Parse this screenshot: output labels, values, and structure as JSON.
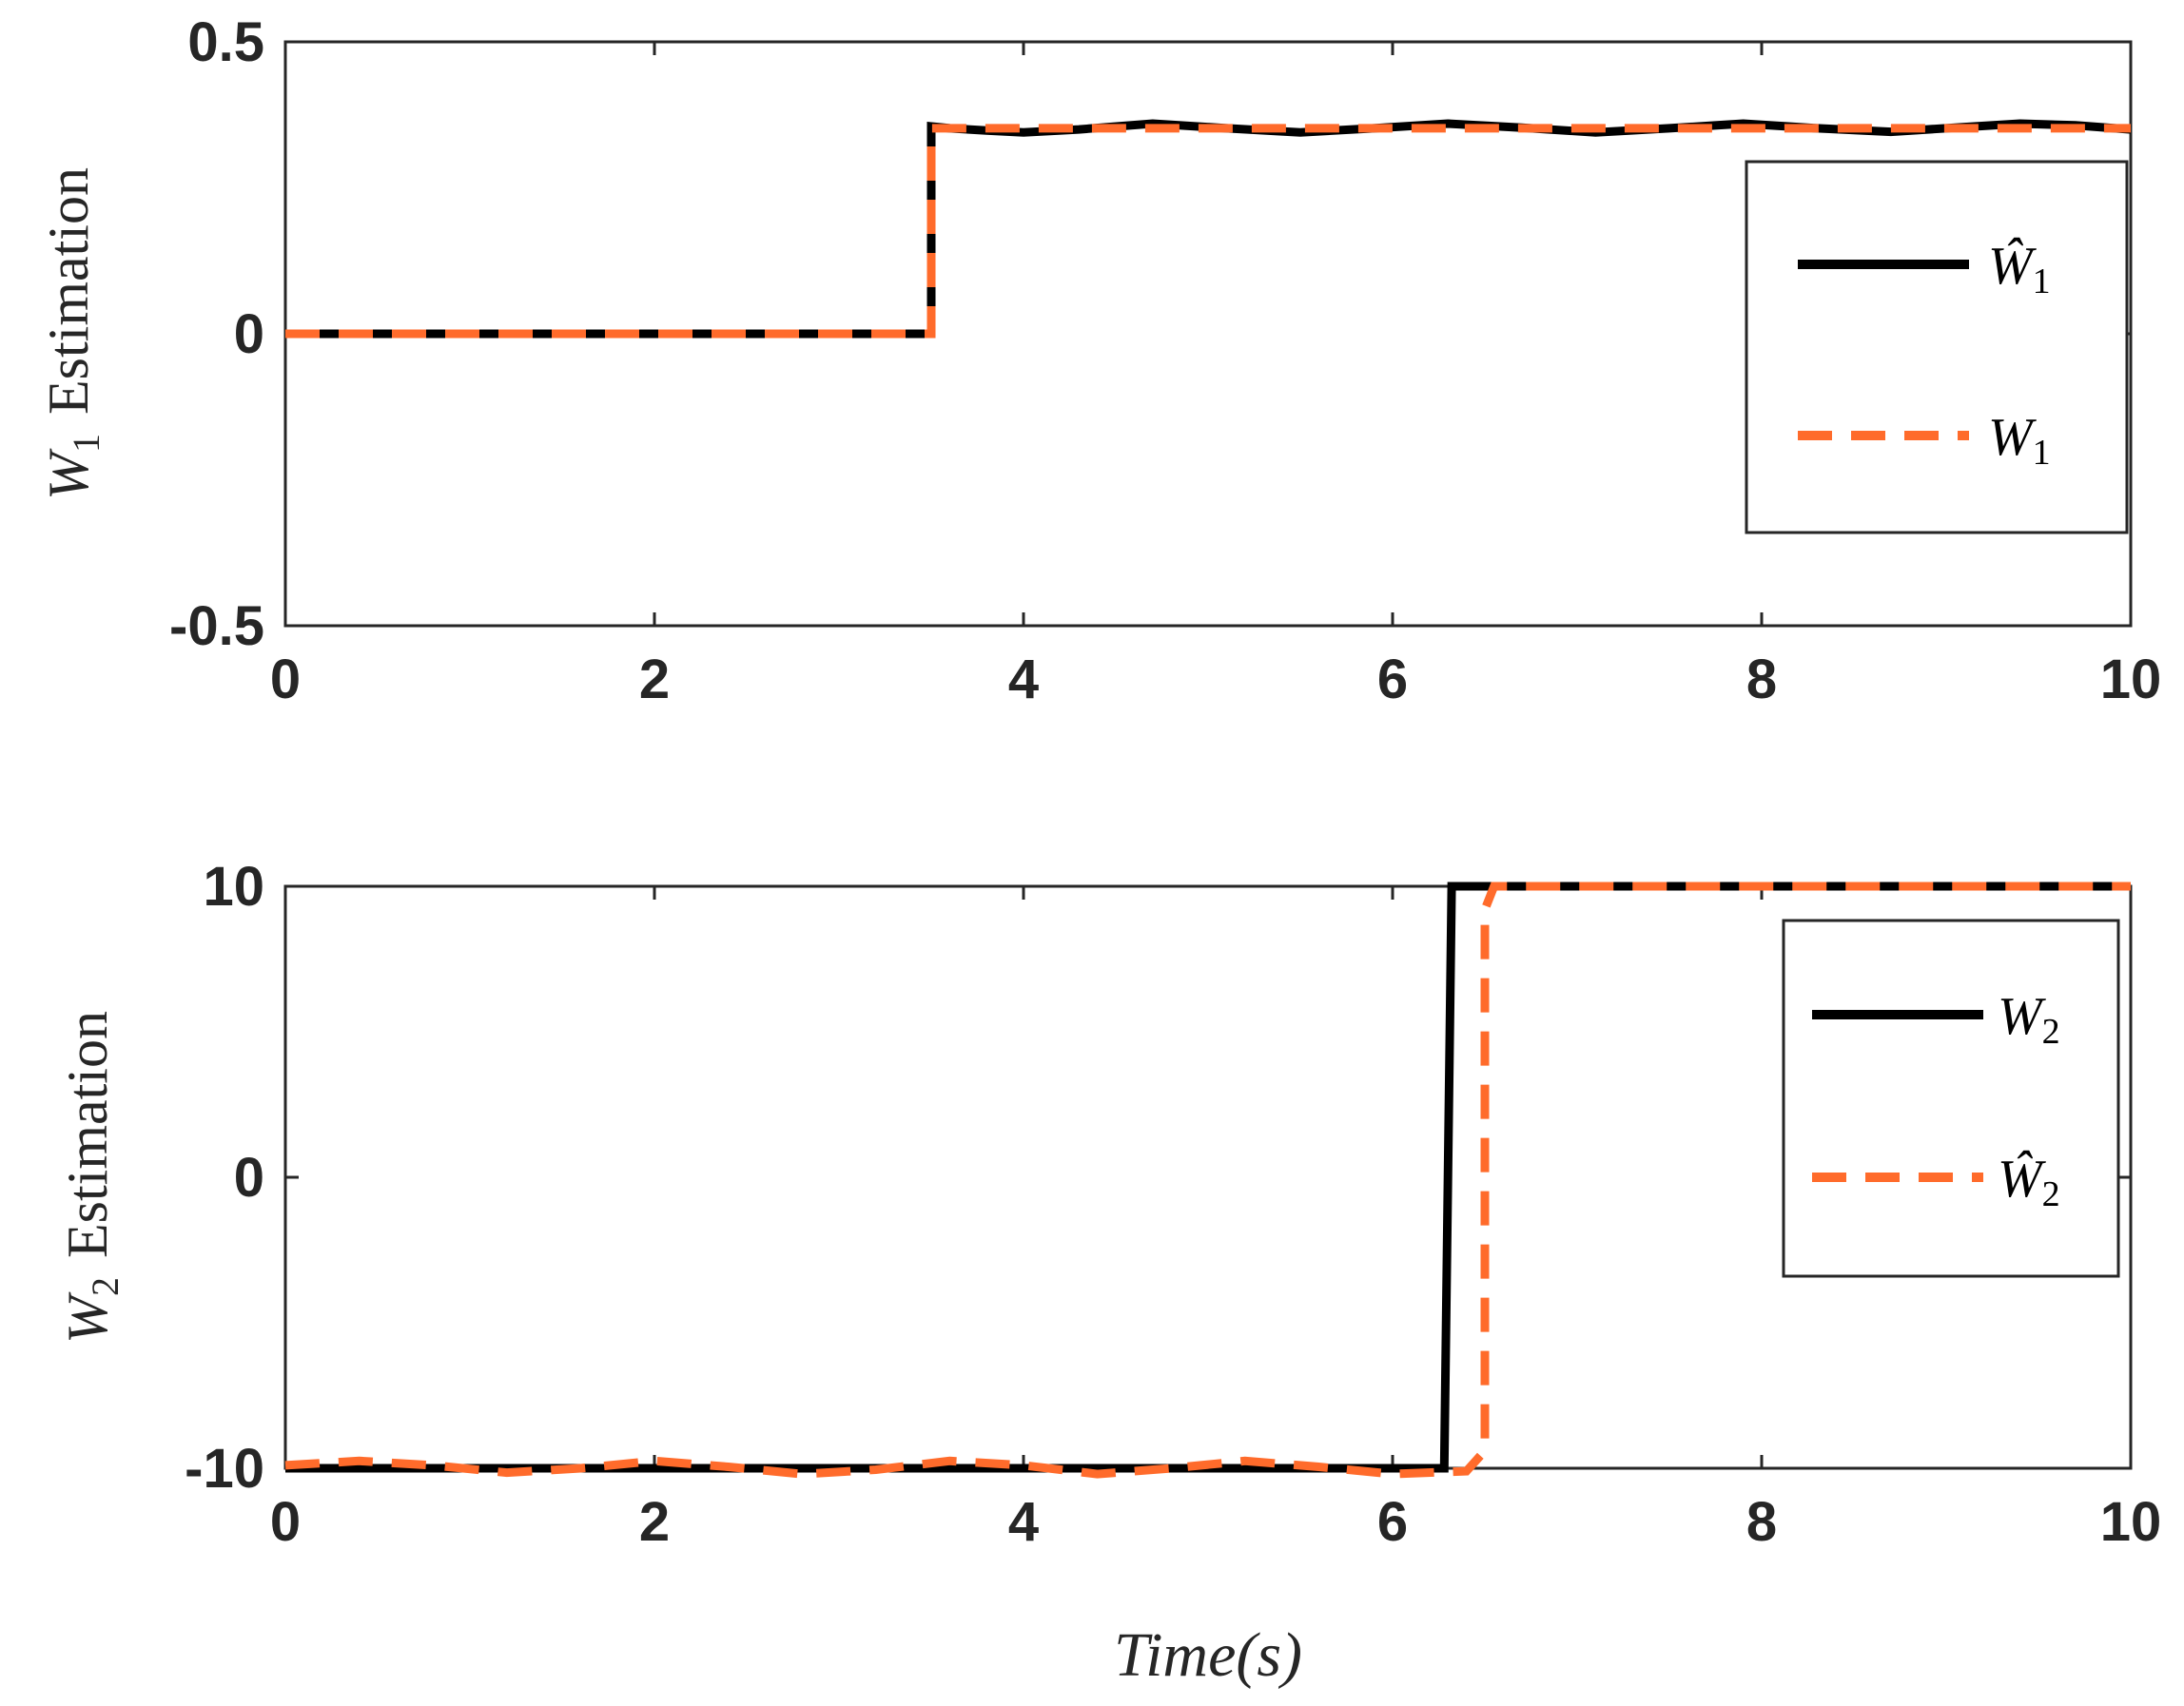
{
  "chart_data": [
    {
      "type": "line",
      "xlabel": "",
      "ylabel": "W1 Estimation",
      "ylabel_parts": {
        "var": "W",
        "sub": "1",
        "rest": "Estimation"
      },
      "xlim": [
        0,
        10
      ],
      "ylim": [
        -0.5,
        0.5
      ],
      "xticks": [
        "0",
        "2",
        "4",
        "6",
        "8",
        "10"
      ],
      "yticks": [
        "-0.5",
        "0",
        "0.5"
      ],
      "grid": false,
      "legend_position": "right",
      "series": [
        {
          "name": "Ŵ1",
          "name_parts": {
            "var": "Ŵ",
            "sub": "1"
          },
          "color": "#000000",
          "style": "solid",
          "x": [
            0,
            3.5,
            3.5,
            3.6,
            3.8,
            4.0,
            4.3,
            4.7,
            5.1,
            5.5,
            5.9,
            6.3,
            6.7,
            7.1,
            7.5,
            7.9,
            8.3,
            8.7,
            9.1,
            9.4,
            9.7,
            10.0
          ],
          "y": [
            0,
            0,
            0.355,
            0.352,
            0.348,
            0.345,
            0.35,
            0.36,
            0.352,
            0.345,
            0.352,
            0.36,
            0.353,
            0.345,
            0.352,
            0.36,
            0.352,
            0.346,
            0.354,
            0.36,
            0.357,
            0.35
          ]
        },
        {
          "name": "W1",
          "name_parts": {
            "var": "W",
            "sub": "1"
          },
          "color": "#ff6b2b",
          "style": "dashed",
          "x": [
            0,
            3.5,
            3.5,
            4.0,
            5.0,
            6.0,
            7.0,
            8.0,
            9.0,
            10.0
          ],
          "y": [
            0,
            0,
            0.352,
            0.352,
            0.352,
            0.352,
            0.352,
            0.352,
            0.352,
            0.352
          ]
        }
      ]
    },
    {
      "type": "line",
      "xlabel": "Time(s)",
      "ylabel": "W2 Estimation",
      "ylabel_parts": {
        "var": "W",
        "sub": "2",
        "rest": "Estimation"
      },
      "xlim": [
        0,
        10
      ],
      "ylim": [
        -10,
        10
      ],
      "xticks": [
        "0",
        "2",
        "4",
        "6",
        "8",
        "10"
      ],
      "yticks": [
        "-10",
        "0",
        "10"
      ],
      "grid": false,
      "legend_position": "right",
      "series": [
        {
          "name": "W2",
          "name_parts": {
            "var": "W",
            "sub": "2"
          },
          "color": "#000000",
          "style": "solid",
          "x": [
            0,
            6.28,
            6.3,
            6.32,
            10.0
          ],
          "y": [
            -10,
            -10,
            0,
            10,
            10
          ]
        },
        {
          "name": "Ŵ2",
          "name_parts": {
            "var": "Ŵ",
            "sub": "2"
          },
          "color": "#ff6b2b",
          "style": "dashed",
          "x": [
            0,
            0.4,
            0.8,
            1.2,
            1.6,
            2.0,
            2.4,
            2.8,
            3.2,
            3.6,
            4.0,
            4.4,
            4.8,
            5.2,
            5.6,
            6.0,
            6.4,
            6.5,
            6.5,
            6.55,
            7.0,
            8.0,
            9.0,
            10.0
          ],
          "y": [
            -9.9,
            -9.75,
            -9.9,
            -10.15,
            -10.0,
            -9.75,
            -9.95,
            -10.2,
            -10.05,
            -9.75,
            -9.9,
            -10.2,
            -10.0,
            -9.75,
            -9.95,
            -10.2,
            -10.1,
            -9.4,
            9.2,
            10,
            10,
            10,
            10,
            10
          ]
        }
      ]
    }
  ]
}
